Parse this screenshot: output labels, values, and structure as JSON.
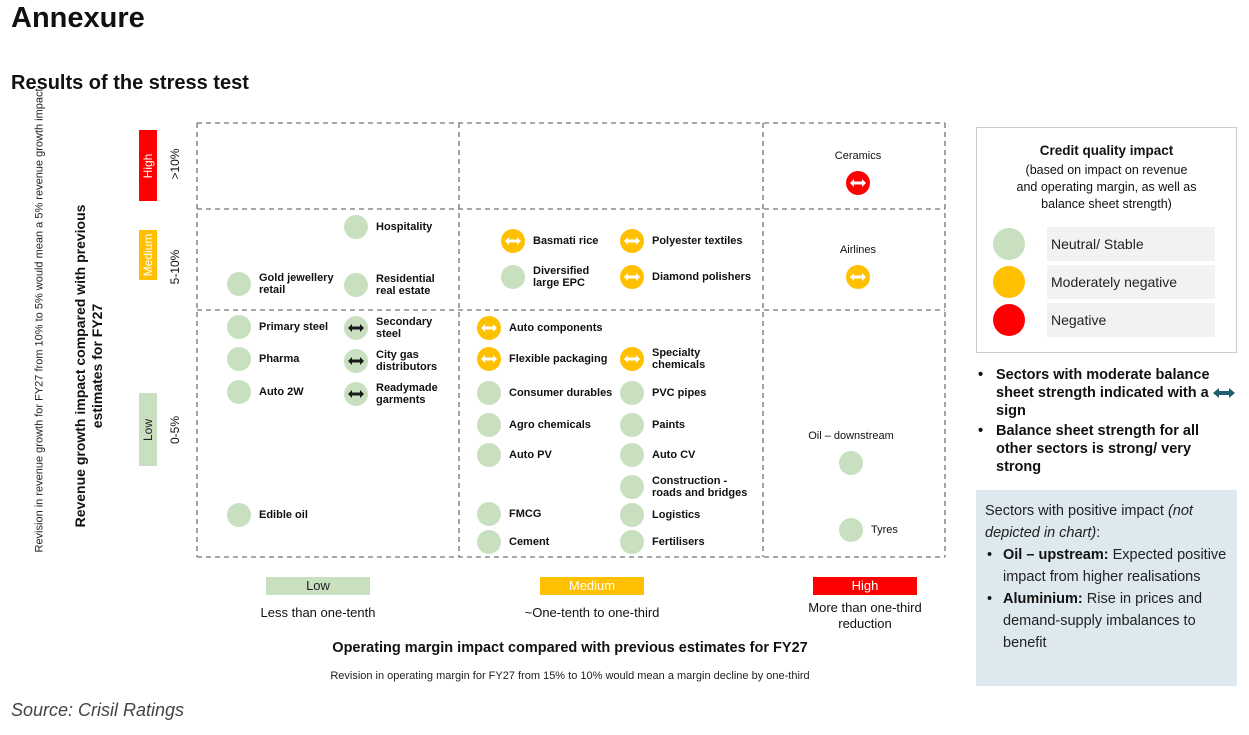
{
  "title": "Annexure",
  "subtitle": "Results of the stress test",
  "source": "Source: Crisil Ratings",
  "colors": {
    "neutral": "#c8e0c0",
    "moderate": "#ffc000",
    "negative": "#ff0000",
    "arrow": "#1f5f6f",
    "grid": "#8c8c8c",
    "low_box": "#c8e0c0",
    "medium_box": "#ffc000",
    "high_box": "#ff0000",
    "positive_bg": "#dde9ee"
  },
  "chart_data": {
    "type": "scatter",
    "x_axis": {
      "title": "Operating margin impact compared with previous estimates for FY27",
      "note": "Revision in operating margin for FY27 from 15% to 10% would mean a margin decline by one-third",
      "bands": [
        {
          "label": "Low",
          "description": "Less than one-tenth"
        },
        {
          "label": "Medium",
          "description": "~One-tenth to one-third"
        },
        {
          "label": "High",
          "description": "More than one-third\nreduction"
        }
      ]
    },
    "y_axis": {
      "title": "Revenue growth impact compared with previous estimates for FY27",
      "note": "Revision in revenue growth for FY27 from 10% to 5% would mean a 5% revenue growth impact",
      "bands": [
        {
          "label": "High",
          "range": ">10%"
        },
        {
          "label": "Medium",
          "range": "5-10%"
        },
        {
          "label": "Low",
          "range": "0-5%"
        }
      ]
    },
    "points": [
      {
        "name": "Ceramics",
        "x_band": "High",
        "y_band": "High",
        "impact": "Negative",
        "moderate_balance_sheet": true
      },
      {
        "name": "Airlines",
        "x_band": "High",
        "y_band": "Medium",
        "impact": "Moderately negative",
        "moderate_balance_sheet": true
      },
      {
        "name": "Oil – downstream",
        "x_band": "High",
        "y_band": "Low",
        "impact": "Neutral/ Stable",
        "moderate_balance_sheet": false
      },
      {
        "name": "Tyres",
        "x_band": "High",
        "y_band": "Low",
        "impact": "Neutral/ Stable",
        "moderate_balance_sheet": false
      },
      {
        "name": "Hospitality",
        "x_band": "Low",
        "y_band": "Medium",
        "impact": "Neutral/ Stable",
        "moderate_balance_sheet": false
      },
      {
        "name": "Gold jewellery\nretail",
        "x_band": "Low",
        "y_band": "Medium",
        "impact": "Neutral/ Stable",
        "moderate_balance_sheet": false
      },
      {
        "name": "Residential\nreal estate",
        "x_band": "Low",
        "y_band": "Medium",
        "impact": "Neutral/ Stable",
        "moderate_balance_sheet": false
      },
      {
        "name": "Basmati rice",
        "x_band": "Medium",
        "y_band": "Medium",
        "impact": "Moderately negative",
        "moderate_balance_sheet": true
      },
      {
        "name": "Polyester textiles",
        "x_band": "Medium",
        "y_band": "Medium",
        "impact": "Moderately negative",
        "moderate_balance_sheet": true
      },
      {
        "name": "Diversified\nlarge EPC",
        "x_band": "Medium",
        "y_band": "Medium",
        "impact": "Neutral/ Stable",
        "moderate_balance_sheet": false
      },
      {
        "name": "Diamond polishers",
        "x_band": "Medium",
        "y_band": "Medium",
        "impact": "Moderately negative",
        "moderate_balance_sheet": true
      },
      {
        "name": "Primary steel",
        "x_band": "Low",
        "y_band": "Low",
        "impact": "Neutral/ Stable",
        "moderate_balance_sheet": false
      },
      {
        "name": "Secondary\nsteel",
        "x_band": "Low",
        "y_band": "Low",
        "impact": "Neutral/ Stable",
        "moderate_balance_sheet": true
      },
      {
        "name": "Pharma",
        "x_band": "Low",
        "y_band": "Low",
        "impact": "Neutral/ Stable",
        "moderate_balance_sheet": false
      },
      {
        "name": "City gas\ndistributors",
        "x_band": "Low",
        "y_band": "Low",
        "impact": "Neutral/ Stable",
        "moderate_balance_sheet": true
      },
      {
        "name": "Auto  2W",
        "x_band": "Low",
        "y_band": "Low",
        "impact": "Neutral/ Stable",
        "moderate_balance_sheet": false
      },
      {
        "name": "Readymade\ngarments",
        "x_band": "Low",
        "y_band": "Low",
        "impact": "Neutral/ Stable",
        "moderate_balance_sheet": true
      },
      {
        "name": "Edible oil",
        "x_band": "Low",
        "y_band": "Low",
        "impact": "Neutral/ Stable",
        "moderate_balance_sheet": false
      },
      {
        "name": "Auto components",
        "x_band": "Medium",
        "y_band": "Low",
        "impact": "Moderately negative",
        "moderate_balance_sheet": true
      },
      {
        "name": "Flexible packaging",
        "x_band": "Medium",
        "y_band": "Low",
        "impact": "Moderately negative",
        "moderate_balance_sheet": true
      },
      {
        "name": "Specialty\nchemicals",
        "x_band": "Medium",
        "y_band": "Low",
        "impact": "Moderately negative",
        "moderate_balance_sheet": true
      },
      {
        "name": "Consumer durables",
        "x_band": "Medium",
        "y_band": "Low",
        "impact": "Neutral/ Stable",
        "moderate_balance_sheet": false
      },
      {
        "name": "PVC pipes",
        "x_band": "Medium",
        "y_band": "Low",
        "impact": "Neutral/ Stable",
        "moderate_balance_sheet": false
      },
      {
        "name": "Agro chemicals",
        "x_band": "Medium",
        "y_band": "Low",
        "impact": "Neutral/ Stable",
        "moderate_balance_sheet": false
      },
      {
        "name": "Paints",
        "x_band": "Medium",
        "y_band": "Low",
        "impact": "Neutral/ Stable",
        "moderate_balance_sheet": false
      },
      {
        "name": "Auto PV",
        "x_band": "Medium",
        "y_band": "Low",
        "impact": "Neutral/ Stable",
        "moderate_balance_sheet": false
      },
      {
        "name": "Auto CV",
        "x_band": "Medium",
        "y_band": "Low",
        "impact": "Neutral/ Stable",
        "moderate_balance_sheet": false
      },
      {
        "name": "Construction -\nroads and bridges",
        "x_band": "Medium",
        "y_band": "Low",
        "impact": "Neutral/ Stable",
        "moderate_balance_sheet": false
      },
      {
        "name": "FMCG",
        "x_band": "Medium",
        "y_band": "Low",
        "impact": "Neutral/ Stable",
        "moderate_balance_sheet": false
      },
      {
        "name": "Logistics",
        "x_band": "Medium",
        "y_band": "Low",
        "impact": "Neutral/ Stable",
        "moderate_balance_sheet": false
      },
      {
        "name": "Cement",
        "x_band": "Medium",
        "y_band": "Low",
        "impact": "Neutral/ Stable",
        "moderate_balance_sheet": false
      },
      {
        "name": "Fertilisers",
        "x_band": "Medium",
        "y_band": "Low",
        "impact": "Neutral/ Stable",
        "moderate_balance_sheet": false
      }
    ],
    "grid": "dashed"
  },
  "legend": {
    "title": "Credit quality impact",
    "subtitle": "(based on impact on revenue\nand operating margin, as well as\nbalance sheet strength)",
    "items": [
      {
        "label": "Neutral/ Stable",
        "color": "#c8e0c0"
      },
      {
        "label": "Moderately negative",
        "color": "#ffc000"
      },
      {
        "label": "Negative",
        "color": "#ff0000"
      }
    ]
  },
  "notes": {
    "note1_pre": "Sectors with moderate balance sheet strength indicated with a",
    "note1_post": "sign",
    "note2": "Balance sheet strength for all other sectors is strong/ very strong"
  },
  "positive": {
    "intro": "Sectors with positive impact",
    "intro_italic": "(not depicted in chart)",
    "intro_colon": ":",
    "items": [
      {
        "name": "Oil – upstream:",
        "text": "Expected positive impact from higher realisations"
      },
      {
        "name": "Aluminium:",
        "text": "Rise in prices and demand-supply imbalances to benefit"
      }
    ]
  }
}
